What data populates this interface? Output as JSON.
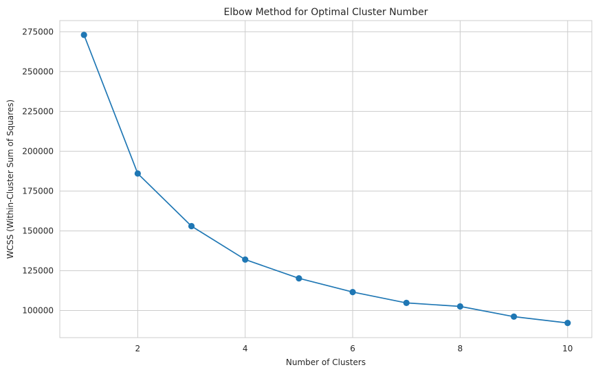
{
  "chart_data": {
    "type": "line",
    "title": "Elbow Method for Optimal Cluster Number",
    "xlabel": "Number of Clusters",
    "ylabel": "WCSS (Within-Cluster Sum of Squares)",
    "x": [
      1,
      2,
      3,
      4,
      5,
      6,
      7,
      8,
      9,
      10
    ],
    "series": [
      {
        "values": [
          273000,
          186000,
          153000,
          132000,
          120200,
          111600,
          104800,
          102600,
          96200,
          92200
        ],
        "color": "#1f77b4",
        "marker": "circle"
      }
    ],
    "xlim": [
      0.55,
      10.45
    ],
    "ylim": [
      83000,
      282000
    ],
    "xticks": [
      2,
      4,
      6,
      8,
      10
    ],
    "yticks": [
      100000,
      125000,
      150000,
      175000,
      200000,
      225000,
      250000,
      275000
    ],
    "grid": true,
    "background": "#ffffff",
    "grid_color": "#cccccc"
  }
}
